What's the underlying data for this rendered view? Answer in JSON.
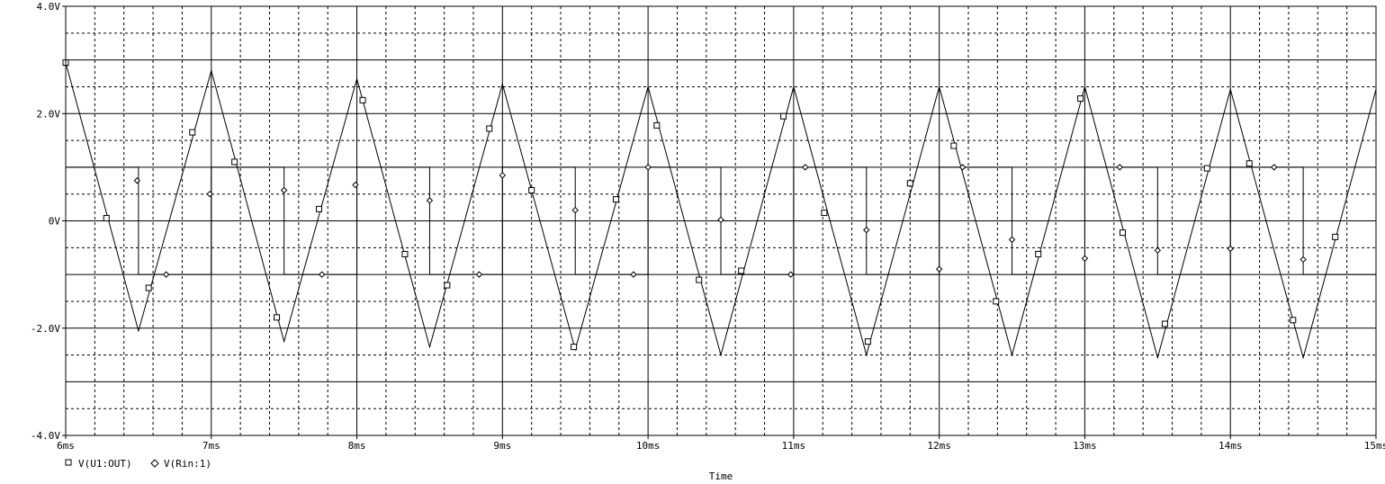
{
  "chart_data": {
    "type": "line",
    "xlabel": "Time",
    "ylabel": "",
    "xlim": [
      6,
      15
    ],
    "ylim": [
      -4,
      4
    ],
    "x_ticks": [
      6,
      7,
      8,
      9,
      10,
      11,
      12,
      13,
      14,
      15
    ],
    "x_tick_labels": [
      "6ms",
      "7ms",
      "8ms",
      "9ms",
      "10ms",
      "11ms",
      "12ms",
      "13ms",
      "14ms",
      "15ms"
    ],
    "y_ticks": [
      -4,
      -2,
      0,
      2,
      4
    ],
    "y_tick_labels": [
      "-4.0V",
      "-2.0V",
      "0V",
      "2.0V",
      "4.0V"
    ],
    "grid": true,
    "legend": [
      {
        "marker": "square",
        "label": "V(U1:OUT)"
      },
      {
        "marker": "diamond",
        "label": "V(Rin:1)"
      }
    ],
    "series": [
      {
        "name": "V(U1:OUT)",
        "marker": "square",
        "x": [
          6.0,
          6.5,
          7.0,
          7.5,
          8.0,
          8.5,
          9.0,
          9.5,
          10.0,
          10.5,
          11.0,
          11.5,
          12.0,
          12.5,
          13.0,
          13.5,
          14.0,
          14.5,
          15.0
        ],
        "values": [
          2.95,
          -2.05,
          2.8,
          -2.25,
          2.65,
          -2.35,
          2.55,
          -2.4,
          2.5,
          -2.5,
          2.5,
          -2.5,
          2.5,
          -2.5,
          2.5,
          -2.55,
          2.45,
          -2.55,
          2.45
        ],
        "marker_x": [
          6.0,
          6.28,
          6.57,
          6.87,
          7.16,
          7.45,
          7.74,
          8.04,
          8.33,
          8.62,
          8.91,
          9.2,
          9.49,
          9.78,
          10.06,
          10.35,
          10.64,
          10.93,
          11.21,
          11.51,
          11.8,
          12.1,
          12.39,
          12.68,
          12.97,
          13.26,
          13.55,
          13.84,
          14.13,
          14.43,
          14.72
        ],
        "marker_y": [
          2.95,
          0.05,
          -1.25,
          1.65,
          1.1,
          -1.8,
          0.22,
          2.25,
          -0.62,
          -1.2,
          1.72,
          0.57,
          -2.35,
          0.4,
          1.78,
          -1.1,
          -0.93,
          1.95,
          0.15,
          -2.25,
          0.7,
          1.4,
          -1.5,
          -0.62,
          2.28,
          -0.22,
          -1.92,
          0.98,
          1.07,
          -1.85,
          -0.3
        ]
      },
      {
        "name": "V(Rin:1)",
        "marker": "diamond",
        "x": [
          6.0,
          6.5,
          6.5,
          7.0,
          7.0,
          7.5,
          7.5,
          8.0,
          8.0,
          8.5,
          8.5,
          9.0,
          9.0,
          9.5,
          9.5,
          10.0,
          10.0,
          10.5,
          10.5,
          11.0,
          11.0,
          11.5,
          11.5,
          12.0,
          12.0,
          12.5,
          12.5,
          13.0,
          13.0,
          13.5,
          13.5,
          14.0,
          14.0,
          14.5,
          14.5,
          15.0
        ],
        "values": [
          1,
          1,
          -1,
          -1,
          1,
          1,
          -1,
          -1,
          1,
          1,
          -1,
          -1,
          1,
          1,
          -1,
          -1,
          1,
          1,
          -1,
          -1,
          1,
          1,
          -1,
          -1,
          1,
          1,
          -1,
          -1,
          1,
          1,
          -1,
          -1,
          1,
          1,
          -1,
          -1
        ],
        "marker_x": [
          6.49,
          6.69,
          6.99,
          7.5,
          7.76,
          7.99,
          8.5,
          8.84,
          9.0,
          9.5,
          9.9,
          10.0,
          10.5,
          10.98,
          11.08,
          11.5,
          12.0,
          12.16,
          12.5,
          13.0,
          13.24,
          13.5,
          14.0,
          14.3,
          14.5
        ],
        "marker_y": [
          0.75,
          -1.0,
          0.5,
          0.57,
          -1.0,
          0.67,
          0.38,
          -1.0,
          0.85,
          0.2,
          -1.0,
          1.0,
          0.02,
          -1.0,
          1.0,
          -0.17,
          -0.9,
          1.0,
          -0.35,
          -0.7,
          1.0,
          -0.55,
          -0.52,
          1.0,
          -0.72
        ]
      }
    ]
  }
}
